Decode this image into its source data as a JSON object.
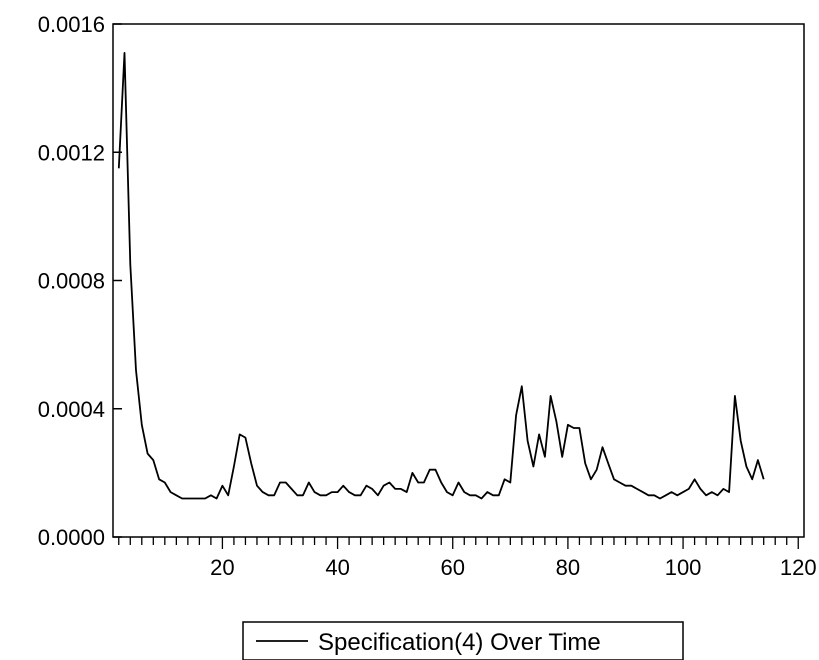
{
  "chart_data": {
    "type": "line",
    "title": "",
    "xlabel": "",
    "ylabel": "",
    "xlim": [
      1,
      121
    ],
    "ylim": [
      0.0,
      0.0016
    ],
    "x_ticks": [
      20,
      40,
      60,
      80,
      100,
      120
    ],
    "x_tick_labels": [
      "20",
      "40",
      "60",
      "80",
      "100",
      "120"
    ],
    "y_ticks": [
      0.0,
      0.0004,
      0.0008,
      0.0012,
      0.0016
    ],
    "y_tick_labels": [
      "0.0000",
      "0.0004",
      "0.0008",
      "0.0012",
      "0.0016"
    ],
    "grid": false,
    "legend_position": "bottom-center",
    "series": [
      {
        "name": "Specification(4) Over Time",
        "color": "#000000",
        "x": [
          2,
          3,
          4,
          5,
          6,
          7,
          8,
          9,
          10,
          11,
          12,
          13,
          14,
          15,
          16,
          17,
          18,
          19,
          20,
          21,
          22,
          23,
          24,
          25,
          26,
          27,
          28,
          29,
          30,
          31,
          32,
          33,
          34,
          35,
          36,
          37,
          38,
          39,
          40,
          41,
          42,
          43,
          44,
          45,
          46,
          47,
          48,
          49,
          50,
          51,
          52,
          53,
          54,
          55,
          56,
          57,
          58,
          59,
          60,
          61,
          62,
          63,
          64,
          65,
          66,
          67,
          68,
          69,
          70,
          71,
          72,
          73,
          74,
          75,
          76,
          77,
          78,
          79,
          80,
          81,
          82,
          83,
          84,
          85,
          86,
          87,
          88,
          89,
          90,
          91,
          92,
          93,
          94,
          95,
          96,
          97,
          98,
          99,
          100,
          101,
          102,
          103,
          104,
          105,
          106,
          107,
          108,
          109,
          110,
          111,
          112,
          113,
          114
        ],
        "values": [
          0.00115,
          0.00151,
          0.00085,
          0.00052,
          0.00035,
          0.00026,
          0.00024,
          0.00018,
          0.00017,
          0.00014,
          0.00013,
          0.00012,
          0.00012,
          0.00012,
          0.00012,
          0.00012,
          0.00013,
          0.00012,
          0.00016,
          0.00013,
          0.00022,
          0.00032,
          0.00031,
          0.00023,
          0.00016,
          0.00014,
          0.00013,
          0.00013,
          0.00017,
          0.00017,
          0.00015,
          0.00013,
          0.00013,
          0.00017,
          0.00014,
          0.00013,
          0.00013,
          0.00014,
          0.00014,
          0.00016,
          0.00014,
          0.00013,
          0.00013,
          0.00016,
          0.00015,
          0.00013,
          0.00016,
          0.00017,
          0.00015,
          0.00015,
          0.00014,
          0.0002,
          0.00017,
          0.00017,
          0.00021,
          0.00021,
          0.00017,
          0.00014,
          0.00013,
          0.00017,
          0.00014,
          0.00013,
          0.00013,
          0.00012,
          0.00014,
          0.00013,
          0.00013,
          0.00018,
          0.00017,
          0.00038,
          0.00047,
          0.0003,
          0.00022,
          0.00032,
          0.00025,
          0.00044,
          0.00036,
          0.00025,
          0.00035,
          0.00034,
          0.00034,
          0.00023,
          0.00018,
          0.00021,
          0.00028,
          0.00023,
          0.00018,
          0.00017,
          0.00016,
          0.00016,
          0.00015,
          0.00014,
          0.00013,
          0.00013,
          0.00012,
          0.00013,
          0.00014,
          0.00013,
          0.00014,
          0.00015,
          0.00018,
          0.00015,
          0.00013,
          0.00014,
          0.00013,
          0.00015,
          0.00014,
          0.00044,
          0.0003,
          0.00022,
          0.00018,
          0.00024,
          0.00018
        ]
      }
    ]
  }
}
